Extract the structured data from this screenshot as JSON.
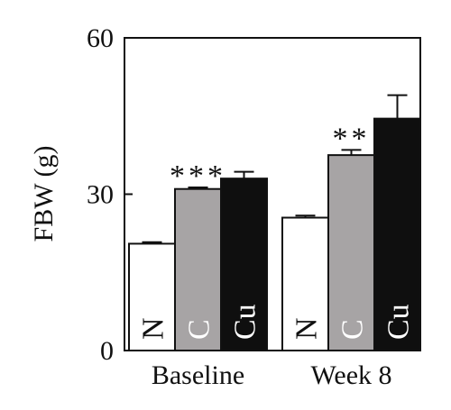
{
  "chart_data": {
    "type": "bar",
    "ylabel": "FBW (g)",
    "ylim": [
      0,
      60
    ],
    "yticks": [
      "0",
      "30",
      "60"
    ],
    "categories": [
      "Baseline",
      "Week 8"
    ],
    "series": [
      {
        "name": "N",
        "color": "#ffffff",
        "label_color": "#111111",
        "values": [
          20.5,
          25.5
        ],
        "errors": [
          0.3,
          0.4
        ]
      },
      {
        "name": "C",
        "color": "#a7a4a5",
        "label_color": "#ffffff",
        "values": [
          31.0,
          37.5
        ],
        "errors": [
          0.3,
          1.0
        ]
      },
      {
        "name": "Cu",
        "color": "#0f0f0f",
        "label_color": "#ffffff",
        "values": [
          33.0,
          44.5
        ],
        "errors": [
          1.3,
          4.5
        ]
      }
    ],
    "significance": [
      {
        "category": "Baseline",
        "series": "C",
        "marker": "***"
      },
      {
        "category": "Week 8",
        "series": "C",
        "marker": "**"
      }
    ]
  }
}
